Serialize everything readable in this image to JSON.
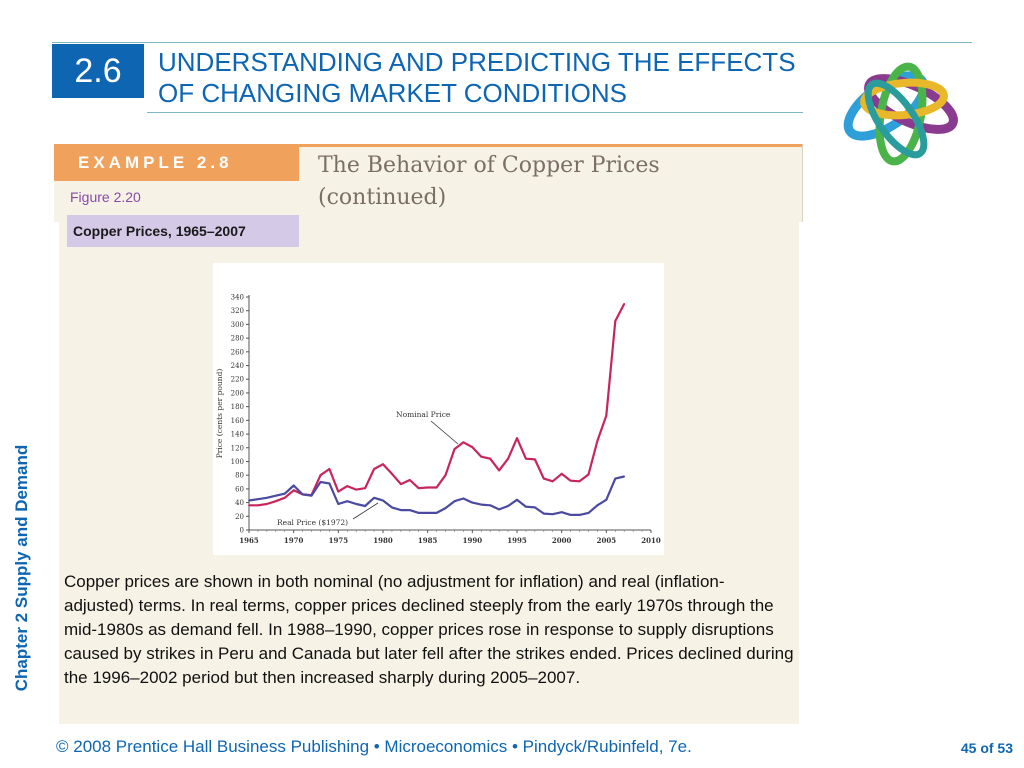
{
  "slide": {
    "section_number": "2.6",
    "title": "UNDERSTANDING AND PREDICTING THE EFFECTS OF CHANGING MARKET CONDITIONS",
    "side_label": "Chapter 2  Supply and Demand",
    "example_tab": "EXAMPLE 2.8",
    "example_title_line1": "The Behavior of Copper Prices",
    "example_title_line2": "(continued)",
    "figure_label": "Figure 2.20",
    "figure_caption": "Copper Prices, 1965–2007",
    "body_text": "Copper prices are shown in both nominal (no adjustment for inflation) and real (inflation-adjusted) terms.  In real terms, copper prices declined steeply from the early 1970s through the mid-1980s as demand fell. In 1988–1990, copper prices rose in response to supply disruptions caused by strikes in Peru and Canada but later fell after the strikes ended.  Prices declined during the 1996–2002 period but then increased sharply during 2005–2007.",
    "footer": "© 2008 Prentice Hall Business Publishing  •  Microeconomics  •  Pindyck/Rubinfeld, 7e.",
    "page_number": "45 of 53"
  },
  "colors": {
    "brand_blue": "#0e66b3",
    "nominal_line": "#c8265a",
    "real_line": "#4a4aa0",
    "example_orange": "#f0a25c"
  },
  "chart_data": {
    "type": "line",
    "ylabel": "Price (cents per pound)",
    "xlabel": "",
    "xlim": [
      1965,
      2010
    ],
    "ylim": [
      0,
      340
    ],
    "xticks": [
      1965,
      1970,
      1975,
      1980,
      1985,
      1990,
      1995,
      2000,
      2005,
      2010
    ],
    "yticks": [
      0,
      20,
      40,
      60,
      80,
      100,
      120,
      140,
      160,
      180,
      200,
      220,
      240,
      260,
      280,
      300,
      320,
      340
    ],
    "grid": false,
    "x": [
      1965,
      1966,
      1967,
      1968,
      1969,
      1970,
      1971,
      1972,
      1973,
      1974,
      1975,
      1976,
      1977,
      1978,
      1979,
      1980,
      1981,
      1982,
      1983,
      1984,
      1985,
      1986,
      1987,
      1988,
      1989,
      1990,
      1991,
      1992,
      1993,
      1994,
      1995,
      1996,
      1997,
      1998,
      1999,
      2000,
      2001,
      2002,
      2003,
      2004,
      2005,
      2006,
      2007
    ],
    "series": [
      {
        "name": "Nominal Price",
        "values": [
          36,
          36,
          38,
          42,
          47,
          58,
          52,
          51,
          80,
          89,
          56,
          64,
          59,
          61,
          89,
          96,
          82,
          67,
          73,
          61,
          62,
          62,
          80,
          118,
          128,
          121,
          107,
          104,
          87,
          104,
          134,
          104,
          103,
          75,
          71,
          82,
          72,
          71,
          81,
          130,
          167,
          305,
          330
        ]
      },
      {
        "name": "Real Price ($1972)",
        "values": [
          43,
          45,
          47,
          50,
          53,
          65,
          52,
          50,
          70,
          68,
          38,
          42,
          38,
          35,
          47,
          43,
          33,
          29,
          29,
          25,
          25,
          25,
          32,
          42,
          46,
          40,
          37,
          36,
          30,
          35,
          44,
          34,
          33,
          24,
          23,
          26,
          22,
          22,
          25,
          36,
          44,
          75,
          78
        ]
      }
    ],
    "annotations": [
      "Nominal Price",
      "Real Price ($1972)"
    ]
  }
}
